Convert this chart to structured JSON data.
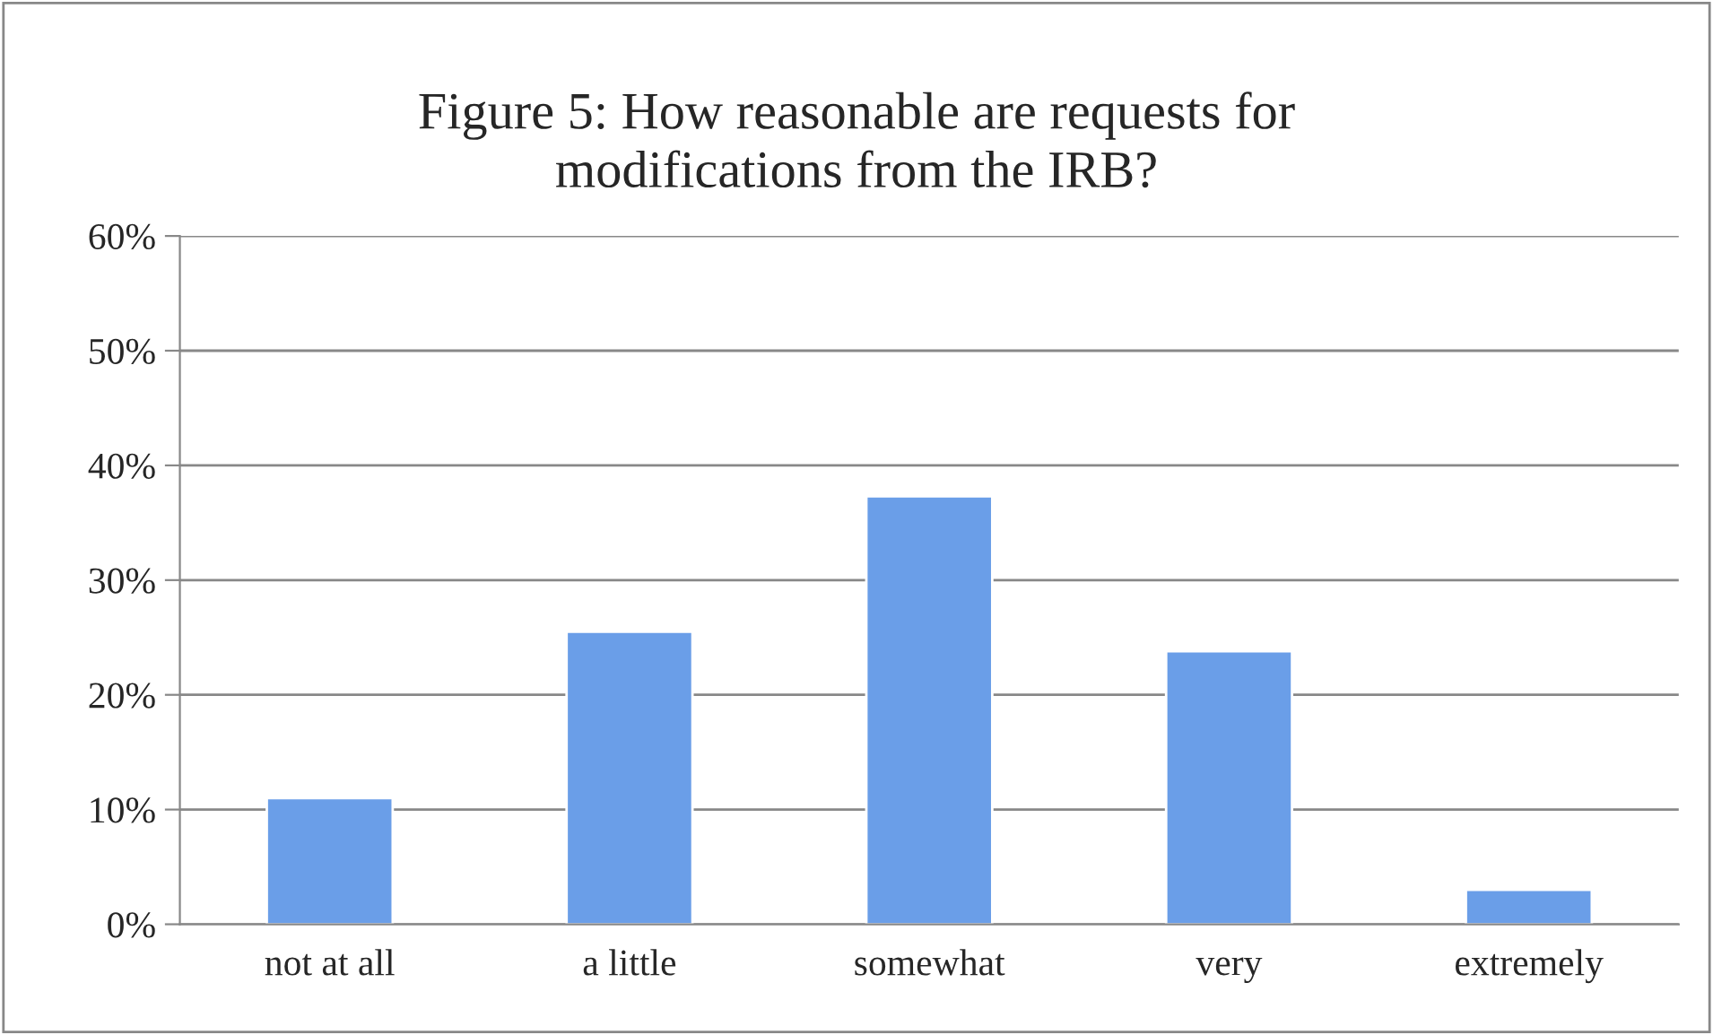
{
  "chart_data": {
    "type": "bar",
    "title": "Figure 5: How reasonable are requests for\nmodifications from the IRB?",
    "categories": [
      "not at all",
      "a little",
      "somewhat",
      "very",
      "extremely"
    ],
    "values": [
      11,
      25.5,
      37.3,
      23.8,
      3
    ],
    "color": "#6a9ee8",
    "ylim": [
      0,
      60
    ],
    "yticks": [
      {
        "value": 0,
        "label": "0%"
      },
      {
        "value": 10,
        "label": "10%"
      },
      {
        "value": 20,
        "label": "20%"
      },
      {
        "value": 30,
        "label": "30%"
      },
      {
        "value": 40,
        "label": "40%"
      },
      {
        "value": 50,
        "label": "50%"
      },
      {
        "value": 60,
        "label": "60%"
      }
    ],
    "grid": "y"
  }
}
